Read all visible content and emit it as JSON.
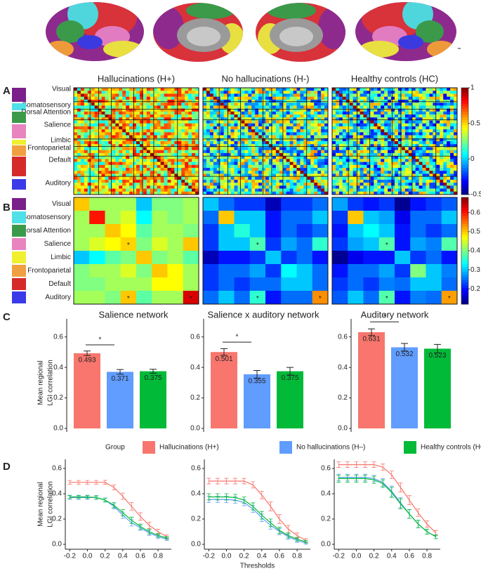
{
  "figure": {
    "panels": [
      "A",
      "B",
      "C",
      "D"
    ],
    "networks": [
      {
        "name": "Visual",
        "color": "#7b1f8a"
      },
      {
        "name": "Somatosensory",
        "color": "#4fe0e8"
      },
      {
        "name": "Dorsal Attention",
        "color": "#3a9a4a"
      },
      {
        "name": "Salience",
        "color": "#e884c0"
      },
      {
        "name": "Limbic",
        "color": "#f0f030"
      },
      {
        "name": "Frontoparietal",
        "color": "#f0a040"
      },
      {
        "name": "Default",
        "color": "#d62a2a"
      },
      {
        "name": "Auditory",
        "color": "#3a3ae8"
      }
    ],
    "legend_title": "Group",
    "groups": [
      {
        "name": "Hallucinations (H+)",
        "color": "#f8766d"
      },
      {
        "name": "No hallucinations (H–)",
        "color": "#619cff"
      },
      {
        "name": "Healthy controls (HC)",
        "color": "#00ba38"
      }
    ]
  },
  "chart_data": [
    {
      "type": "matrix-image",
      "titles": [
        "Hallucinations (H+)",
        "No hallucinations (H-)",
        "Healthy controls (HC)"
      ],
      "clim": [
        -0.5,
        1
      ],
      "colorbar_ticks": [
        1,
        0.5,
        0,
        -0.5
      ]
    },
    {
      "type": "heatmap",
      "marker": "*",
      "clim": [
        0.12,
        0.68
      ],
      "colorbar_ticks": [
        0.6,
        0.5,
        0.4,
        0.3,
        0.2
      ],
      "matrices": [
        {
          "values": [
            [
              0.5,
              0.42,
              0.42,
              0.42,
              0.3,
              0.4,
              0.4,
              0.42
            ],
            [
              0.42,
              0.6,
              0.42,
              0.45,
              0.33,
              0.42,
              0.4,
              0.42
            ],
            [
              0.42,
              0.42,
              0.5,
              0.47,
              0.38,
              0.42,
              0.42,
              0.4
            ],
            [
              0.42,
              0.45,
              0.47,
              0.493,
              0.4,
              0.45,
              0.42,
              0.501
            ],
            [
              0.3,
              0.33,
              0.38,
              0.4,
              0.5,
              0.4,
              0.42,
              0.38
            ],
            [
              0.4,
              0.42,
              0.42,
              0.45,
              0.4,
              0.5,
              0.47,
              0.42
            ],
            [
              0.4,
              0.4,
              0.42,
              0.42,
              0.42,
              0.47,
              0.47,
              0.42
            ],
            [
              0.42,
              0.42,
              0.4,
              0.501,
              0.38,
              0.42,
              0.42,
              0.631
            ]
          ],
          "marked_cells": [
            [
              3,
              3
            ],
            [
              7,
              3
            ],
            [
              7,
              7
            ]
          ]
        },
        {
          "values": [
            [
              0.3,
              0.25,
              0.22,
              0.22,
              0.15,
              0.22,
              0.22,
              0.25
            ],
            [
              0.25,
              0.5,
              0.3,
              0.3,
              0.2,
              0.25,
              0.25,
              0.3
            ],
            [
              0.22,
              0.3,
              0.35,
              0.3,
              0.2,
              0.25,
              0.22,
              0.25
            ],
            [
              0.22,
              0.3,
              0.3,
              0.371,
              0.22,
              0.28,
              0.25,
              0.355
            ],
            [
              0.15,
              0.2,
              0.2,
              0.22,
              0.3,
              0.22,
              0.25,
              0.2
            ],
            [
              0.22,
              0.25,
              0.25,
              0.28,
              0.22,
              0.33,
              0.3,
              0.25
            ],
            [
              0.22,
              0.25,
              0.22,
              0.25,
              0.25,
              0.3,
              0.3,
              0.25
            ],
            [
              0.25,
              0.3,
              0.25,
              0.355,
              0.2,
              0.25,
              0.25,
              0.532
            ]
          ],
          "marked_cells": [
            [
              3,
              3
            ],
            [
              7,
              3
            ],
            [
              7,
              7
            ]
          ]
        },
        {
          "values": [
            [
              0.28,
              0.22,
              0.2,
              0.22,
              0.13,
              0.2,
              0.22,
              0.24
            ],
            [
              0.22,
              0.5,
              0.3,
              0.28,
              0.18,
              0.25,
              0.25,
              0.3
            ],
            [
              0.2,
              0.3,
              0.33,
              0.3,
              0.2,
              0.25,
              0.22,
              0.25
            ],
            [
              0.22,
              0.28,
              0.3,
              0.375,
              0.2,
              0.28,
              0.26,
              0.375
            ],
            [
              0.13,
              0.18,
              0.2,
              0.2,
              0.3,
              0.22,
              0.25,
              0.2
            ],
            [
              0.2,
              0.25,
              0.25,
              0.28,
              0.22,
              0.4,
              0.3,
              0.26
            ],
            [
              0.22,
              0.25,
              0.22,
              0.26,
              0.25,
              0.3,
              0.3,
              0.25
            ],
            [
              0.24,
              0.3,
              0.25,
              0.375,
              0.2,
              0.26,
              0.25,
              0.523
            ]
          ],
          "marked_cells": [
            [
              3,
              3
            ],
            [
              7,
              3
            ],
            [
              7,
              7
            ]
          ]
        }
      ]
    },
    {
      "type": "bar",
      "title": "Salience network",
      "ylabel": [
        "Mean regional",
        "LGI correlation"
      ],
      "values": [
        0.493,
        0.371,
        0.375
      ],
      "errors": [
        0.015,
        0.015,
        0.013
      ],
      "ylim": [
        0,
        0.7
      ],
      "yticks": [
        {
          "value": 0,
          "label": "0.0"
        },
        0.2,
        0.4,
        0.6
      ],
      "significance": {
        "pair": [
          0,
          1
        ],
        "label": "*"
      }
    },
    {
      "type": "bar",
      "title": "Salience x auditory network",
      "values": [
        0.501,
        0.355,
        0.375
      ],
      "errors": [
        0.022,
        0.025,
        0.025
      ],
      "ylim": [
        0,
        0.7
      ],
      "yticks": [
        {
          "value": 0,
          "label": "0.0"
        },
        0.2,
        0.4,
        0.6
      ],
      "significance": {
        "pair": [
          0,
          1
        ],
        "label": "*"
      }
    },
    {
      "type": "bar",
      "title": "Auditory network",
      "values": [
        0.631,
        0.532,
        0.523
      ],
      "errors": [
        0.022,
        0.025,
        0.028
      ],
      "ylim": [
        0,
        0.7
      ],
      "yticks": [
        {
          "value": 0,
          "label": "0.0"
        },
        0.2,
        0.4,
        0.6
      ],
      "significance": {
        "pair": [
          0,
          1
        ],
        "label": "*"
      }
    },
    {
      "type": "line",
      "ylabel": [
        "Mean regional",
        "LGI correlation"
      ],
      "x": [
        -0.2,
        -0.1,
        0,
        0.1,
        0.2,
        0.3,
        0.4,
        0.5,
        0.6,
        0.7,
        0.8,
        0.9
      ],
      "series": [
        {
          "values": [
            0.49,
            0.49,
            0.49,
            0.49,
            0.49,
            0.45,
            0.38,
            0.3,
            0.22,
            0.15,
            0.1,
            0.06
          ],
          "errors": [
            0.015,
            0.015,
            0.015,
            0.015,
            0.016,
            0.02,
            0.025,
            0.03,
            0.03,
            0.025,
            0.02,
            0.015
          ]
        },
        {
          "values": [
            0.37,
            0.37,
            0.37,
            0.37,
            0.35,
            0.3,
            0.23,
            0.17,
            0.13,
            0.09,
            0.06,
            0.04
          ],
          "errors": [
            0.015,
            0.015,
            0.015,
            0.015,
            0.016,
            0.02,
            0.025,
            0.025,
            0.02,
            0.02,
            0.015,
            0.01
          ]
        },
        {
          "values": [
            0.375,
            0.375,
            0.375,
            0.37,
            0.35,
            0.31,
            0.25,
            0.19,
            0.14,
            0.1,
            0.07,
            0.05
          ],
          "errors": [
            0.013,
            0.013,
            0.013,
            0.013,
            0.015,
            0.02,
            0.025,
            0.025,
            0.02,
            0.02,
            0.015,
            0.01
          ]
        }
      ],
      "xlim": [
        -0.25,
        0.95
      ],
      "ylim": [
        0,
        0.65
      ],
      "xticks": [
        -0.2,
        {
          "value": 0,
          "label": "0.0"
        },
        0.2,
        0.4,
        0.6,
        0.8
      ],
      "yticks": [
        {
          "value": 0,
          "label": "0.0"
        },
        0.2,
        0.4,
        0.6
      ]
    },
    {
      "type": "line",
      "xlabel": "Thresholds",
      "x": [
        -0.2,
        -0.1,
        0,
        0.1,
        0.2,
        0.3,
        0.4,
        0.5,
        0.6,
        0.7,
        0.8,
        0.9
      ],
      "series": [
        {
          "values": [
            0.5,
            0.5,
            0.5,
            0.5,
            0.5,
            0.47,
            0.39,
            0.3,
            0.2,
            0.12,
            0.07,
            0.03
          ],
          "errors": [
            0.022,
            0.022,
            0.022,
            0.022,
            0.022,
            0.025,
            0.03,
            0.035,
            0.035,
            0.03,
            0.02,
            0.015
          ]
        },
        {
          "values": [
            0.355,
            0.355,
            0.355,
            0.35,
            0.33,
            0.28,
            0.21,
            0.15,
            0.1,
            0.06,
            0.03,
            0.01
          ],
          "errors": [
            0.025,
            0.025,
            0.025,
            0.025,
            0.025,
            0.028,
            0.03,
            0.03,
            0.025,
            0.02,
            0.015,
            0.01
          ]
        },
        {
          "values": [
            0.375,
            0.375,
            0.375,
            0.37,
            0.35,
            0.3,
            0.23,
            0.17,
            0.11,
            0.07,
            0.04,
            0.02
          ],
          "errors": [
            0.025,
            0.025,
            0.025,
            0.025,
            0.025,
            0.028,
            0.03,
            0.03,
            0.025,
            0.02,
            0.015,
            0.01
          ]
        }
      ],
      "xlim": [
        -0.25,
        0.95
      ],
      "ylim": [
        0,
        0.65
      ],
      "xticks": [
        -0.2,
        {
          "value": 0,
          "label": "0.0"
        },
        0.2,
        0.4,
        0.6,
        0.8
      ],
      "yticks": [
        {
          "value": 0,
          "label": "0.0"
        },
        0.2,
        0.4,
        0.6
      ]
    },
    {
      "type": "line",
      "x": [
        -0.2,
        -0.1,
        0,
        0.1,
        0.2,
        0.3,
        0.4,
        0.5,
        0.6,
        0.7,
        0.8,
        0.9
      ],
      "series": [
        {
          "values": [
            0.63,
            0.63,
            0.63,
            0.63,
            0.63,
            0.61,
            0.55,
            0.45,
            0.35,
            0.25,
            0.16,
            0.09
          ],
          "errors": [
            0.022,
            0.022,
            0.022,
            0.022,
            0.022,
            0.025,
            0.03,
            0.035,
            0.035,
            0.03,
            0.025,
            0.02
          ]
        },
        {
          "values": [
            0.53,
            0.53,
            0.53,
            0.53,
            0.52,
            0.49,
            0.42,
            0.33,
            0.24,
            0.16,
            0.1,
            0.06
          ],
          "errors": [
            0.025,
            0.025,
            0.025,
            0.025,
            0.025,
            0.03,
            0.04,
            0.04,
            0.035,
            0.03,
            0.02,
            0.015
          ]
        },
        {
          "values": [
            0.52,
            0.52,
            0.52,
            0.52,
            0.51,
            0.48,
            0.41,
            0.32,
            0.24,
            0.16,
            0.1,
            0.06
          ],
          "errors": [
            0.028,
            0.028,
            0.028,
            0.028,
            0.028,
            0.03,
            0.04,
            0.04,
            0.035,
            0.03,
            0.02,
            0.015
          ]
        }
      ],
      "xlim": [
        -0.25,
        0.95
      ],
      "ylim": [
        0,
        0.65
      ],
      "xticks": [
        -0.2,
        {
          "value": 0,
          "label": "0.0"
        },
        0.2,
        0.4,
        0.6,
        0.8
      ],
      "yticks": [
        {
          "value": 0,
          "label": "0.0"
        },
        0.2,
        0.4,
        0.6
      ]
    }
  ]
}
